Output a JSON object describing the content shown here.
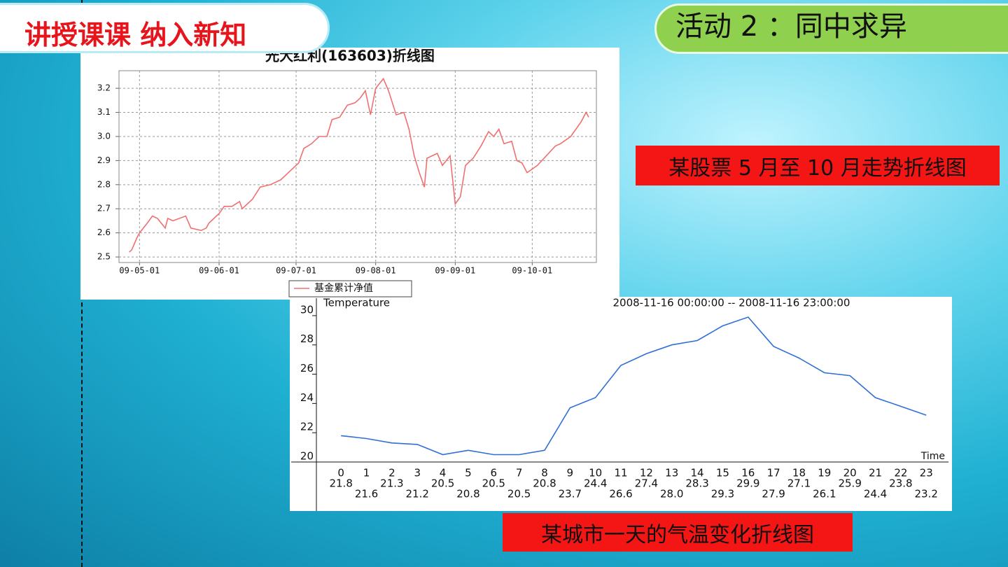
{
  "slide": {
    "section_title": "讲授课课  纳入新知",
    "activity_title": "活动 2 ：同中求异",
    "caption_1": "某股票 5 月至 10 月走势折线图",
    "caption_2": "某城市一天的气温变化折线图"
  },
  "chart_data": [
    {
      "type": "line",
      "title": "光大红利(163603)折线图",
      "x": [
        "09-04-27",
        "09-04-28",
        "09-04-30",
        "09-05-01",
        "09-05-04",
        "09-05-06",
        "09-05-08",
        "09-05-11",
        "09-05-12",
        "09-05-14",
        "09-05-19",
        "09-05-21",
        "09-05-25",
        "09-05-27",
        "09-05-28",
        "09-06-01",
        "09-06-03",
        "09-06-06",
        "09-06-09",
        "09-06-10",
        "09-06-14",
        "09-06-17",
        "09-06-21",
        "09-06-25",
        "09-06-28",
        "09-07-02",
        "09-07-04",
        "09-07-07",
        "09-07-10",
        "09-07-13",
        "09-07-15",
        "09-07-18",
        "09-07-21",
        "09-07-24",
        "09-07-26",
        "09-07-28",
        "09-07-30",
        "09-08-01",
        "09-08-04",
        "09-08-06",
        "09-08-09",
        "09-08-12",
        "09-08-14",
        "09-08-16",
        "09-08-18",
        "09-08-20",
        "09-08-21",
        "09-08-25",
        "09-08-27",
        "09-08-30",
        "09-09-01",
        "09-09-03",
        "09-09-05",
        "09-09-08",
        "09-09-11",
        "09-09-14",
        "09-09-16",
        "09-09-18",
        "09-09-20",
        "09-09-23",
        "09-09-25",
        "09-09-27",
        "09-09-29",
        "09-10-03",
        "09-10-10",
        "09-10-12",
        "09-10-16",
        "09-10-20",
        "09-10-22",
        "09-10-23"
      ],
      "series": [
        {
          "name": "基金累计净值",
          "color": "#f07070",
          "values": [
            2.52,
            2.53,
            2.58,
            2.6,
            2.64,
            2.67,
            2.66,
            2.62,
            2.66,
            2.65,
            2.67,
            2.62,
            2.61,
            2.62,
            2.64,
            2.68,
            2.71,
            2.71,
            2.73,
            2.7,
            2.74,
            2.79,
            2.8,
            2.82,
            2.85,
            2.89,
            2.95,
            2.97,
            3.0,
            3.0,
            3.07,
            3.08,
            3.13,
            3.14,
            3.16,
            3.19,
            3.09,
            3.2,
            3.24,
            3.19,
            3.09,
            3.1,
            3.03,
            2.92,
            2.85,
            2.79,
            2.91,
            2.93,
            2.88,
            2.92,
            2.72,
            2.75,
            2.88,
            2.91,
            2.96,
            3.02,
            3.0,
            3.03,
            2.97,
            2.98,
            2.9,
            2.89,
            2.85,
            2.88,
            2.96,
            2.97,
            3.0,
            3.06,
            3.1,
            3.08
          ]
        }
      ],
      "xlim": [
        "09-04-23",
        "09-10-26"
      ],
      "xticks": [
        "09-05-01",
        "09-06-01",
        "09-07-01",
        "09-08-01",
        "09-09-01",
        "09-10-01"
      ],
      "ylim": [
        2.477,
        3.273
      ],
      "yticks": [
        2.5,
        2.6,
        2.7,
        2.8,
        2.9,
        {
          "value": 3,
          "label": "3.0"
        },
        3.1,
        3.2
      ],
      "grid": true
    },
    {
      "type": "line",
      "ylabel": "Temperature",
      "subtitle": "2008-11-16 00:00:00 -- 2008-11-16 23:00:00",
      "xlabel": "Time",
      "categories": [
        "0",
        "1",
        "2",
        "3",
        "4",
        "5",
        "6",
        "7",
        "8",
        "9",
        "10",
        "11",
        "12",
        "13",
        "14",
        "15",
        "16",
        "17",
        "18",
        "19",
        "20",
        "21",
        "22",
        "23"
      ],
      "values": [
        21.8,
        21.6,
        21.3,
        21.2,
        20.5,
        20.8,
        20.5,
        20.5,
        20.8,
        23.7,
        24.4,
        26.6,
        27.4,
        28.0,
        28.3,
        29.3,
        29.9,
        27.9,
        27.1,
        26.1,
        25.9,
        24.4,
        23.8,
        23.2
      ],
      "value_labels": [
        "21.8",
        "21.6",
        "21.3",
        "21.2",
        "20.5",
        "20.8",
        "20.5",
        "20.5",
        "20.8",
        "23.7",
        "24.4",
        "26.6",
        "27.4",
        "28.0",
        "28.3",
        "29.3",
        "29.9",
        "27.9",
        "27.1",
        "26.1",
        "25.9",
        "24.4",
        "23.8",
        "23.2"
      ],
      "color": "#2f6fd6",
      "ylim": [
        20,
        31
      ],
      "yticks": [
        20,
        22,
        24,
        26,
        28,
        30
      ],
      "grid": false
    }
  ]
}
